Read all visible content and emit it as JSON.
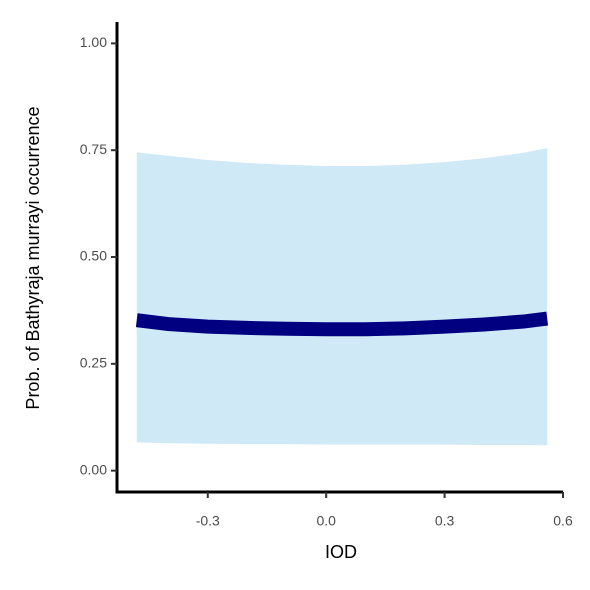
{
  "chart_data": {
    "type": "line",
    "x_label": "IOD",
    "y_label": "Prob. of  Bathyraja murrayi  occurrence",
    "x": [
      -0.48,
      -0.4,
      -0.3,
      -0.2,
      -0.1,
      0,
      0.1,
      0.2,
      0.3,
      0.4,
      0.5,
      0.56
    ],
    "series": [
      {
        "color": "#000080",
        "band_color": "#d0e9f6",
        "values": [
          0.352,
          0.343,
          0.337,
          0.334,
          0.332,
          0.331,
          0.331,
          0.333,
          0.337,
          0.342,
          0.349,
          0.356
        ],
        "upper": [
          0.745,
          0.737,
          0.727,
          0.72,
          0.716,
          0.713,
          0.713,
          0.716,
          0.722,
          0.731,
          0.744,
          0.755
        ],
        "lower": [
          0.066,
          0.064,
          0.063,
          0.062,
          0.062,
          0.061,
          0.061,
          0.061,
          0.061,
          0.06,
          0.06,
          0.059
        ]
      }
    ],
    "xlim": [
      -0.53,
      0.6
    ],
    "ylim": [
      -0.05,
      1.05
    ],
    "xticks": [
      -0.3,
      {
        "value": 0,
        "label": "0.0"
      },
      0.3,
      0.6
    ],
    "yticks": [
      {
        "value": 0,
        "label": "0.00"
      },
      {
        "value": 0.25,
        "label": "0.25"
      },
      {
        "value": 0.5,
        "label": "0.50"
      },
      {
        "value": 0.75,
        "label": "0.75"
      },
      {
        "value": 1,
        "label": "1.00"
      }
    ]
  }
}
